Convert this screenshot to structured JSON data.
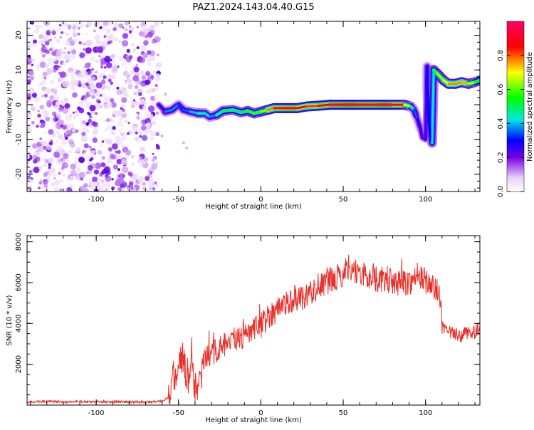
{
  "figure": {
    "title": "PAZ1.2024.143.04.40.G15"
  },
  "chart_data": [
    {
      "type": "heatmap",
      "title": "PAZ1.2024.143.04.40.G15",
      "xlabel": "Height of straight line (km)",
      "ylabel": "Frequency (Hz)",
      "xlim": [
        -142,
        133
      ],
      "ylim": [
        -25,
        24
      ],
      "xticks": [
        -100,
        -50,
        0,
        50,
        100
      ],
      "yticks": [
        -20,
        -10,
        0,
        10,
        20
      ],
      "colorbar": {
        "label": "Normalized spectral amplitude",
        "range": [
          0,
          1
        ],
        "ticks": [
          0.0,
          0.2,
          0.4,
          0.6,
          0.8
        ],
        "colormap": [
          "#ffffff",
          "#e9d3f7",
          "#7a00e6",
          "#0000ff",
          "#00e5e5",
          "#00ff00",
          "#ffff00",
          "#ff0000",
          "#ff0066"
        ]
      },
      "noise_region": {
        "x": [
          -142,
          -62
        ],
        "y": [
          -25,
          24
        ],
        "amplitude": 0.15
      },
      "ridge": [
        {
          "x": -62,
          "y": 0.0,
          "a": 0.2
        },
        {
          "x": -58,
          "y": -2.0,
          "a": 0.3
        },
        {
          "x": -54,
          "y": -1.5,
          "a": 0.45
        },
        {
          "x": -50,
          "y": 0.0,
          "a": 0.3
        },
        {
          "x": -47,
          "y": -1.5,
          "a": 0.35
        },
        {
          "x": -43,
          "y": -2.0,
          "a": 0.35
        },
        {
          "x": -38,
          "y": -2.5,
          "a": 0.45
        },
        {
          "x": -34,
          "y": -2.5,
          "a": 0.5
        },
        {
          "x": -31,
          "y": -3.5,
          "a": 0.35
        },
        {
          "x": -27,
          "y": -3.0,
          "a": 0.4
        },
        {
          "x": -23,
          "y": -1.8,
          "a": 0.55
        },
        {
          "x": -17,
          "y": -1.5,
          "a": 0.5
        },
        {
          "x": -12,
          "y": -2.2,
          "a": 0.5
        },
        {
          "x": -8,
          "y": -1.8,
          "a": 0.55
        },
        {
          "x": -4,
          "y": -2.5,
          "a": 0.6
        },
        {
          "x": 0,
          "y": -2.0,
          "a": 0.55
        },
        {
          "x": 4,
          "y": -1.5,
          "a": 0.7
        },
        {
          "x": 8,
          "y": -1.0,
          "a": 0.85
        },
        {
          "x": 15,
          "y": -1.0,
          "a": 0.9
        },
        {
          "x": 22,
          "y": -1.0,
          "a": 0.9
        },
        {
          "x": 28,
          "y": -0.5,
          "a": 0.8
        },
        {
          "x": 35,
          "y": -0.3,
          "a": 0.85
        },
        {
          "x": 42,
          "y": 0.0,
          "a": 0.9
        },
        {
          "x": 50,
          "y": 0.0,
          "a": 0.95
        },
        {
          "x": 58,
          "y": 0.0,
          "a": 0.95
        },
        {
          "x": 65,
          "y": 0.0,
          "a": 0.9
        },
        {
          "x": 72,
          "y": 0.0,
          "a": 0.95
        },
        {
          "x": 80,
          "y": 0.0,
          "a": 0.95
        },
        {
          "x": 87,
          "y": 0.0,
          "a": 0.8
        },
        {
          "x": 91,
          "y": -0.5,
          "a": 0.55
        },
        {
          "x": 93,
          "y": -1.5,
          "a": 0.4
        },
        {
          "x": 95,
          "y": -4.0,
          "a": 0.3
        },
        {
          "x": 97,
          "y": -7.0,
          "a": 0.25
        },
        {
          "x": 98,
          "y": -9.5,
          "a": 0.25
        },
        {
          "x": 100,
          "y": -10.0,
          "a": 0.2
        },
        {
          "x": 101,
          "y": 11.0,
          "a": 0.3
        },
        {
          "x": 101,
          "y": 5.0,
          "a": 0.3
        },
        {
          "x": 102,
          "y": -3.0,
          "a": 0.3
        },
        {
          "x": 103,
          "y": -9.0,
          "a": 0.3
        },
        {
          "x": 104,
          "y": -11.0,
          "a": 0.3
        },
        {
          "x": 105,
          "y": 10.0,
          "a": 0.55
        },
        {
          "x": 107,
          "y": 9.0,
          "a": 0.6
        },
        {
          "x": 109,
          "y": 8.0,
          "a": 0.7
        },
        {
          "x": 111,
          "y": 7.0,
          "a": 0.6
        },
        {
          "x": 114,
          "y": 6.0,
          "a": 0.8
        },
        {
          "x": 118,
          "y": 6.0,
          "a": 0.75
        },
        {
          "x": 122,
          "y": 6.5,
          "a": 0.8
        },
        {
          "x": 126,
          "y": 6.0,
          "a": 0.7
        },
        {
          "x": 130,
          "y": 6.5,
          "a": 0.6
        },
        {
          "x": 133,
          "y": 7.0,
          "a": 0.5
        }
      ]
    },
    {
      "type": "line",
      "xlabel": "Height of straight line (km)",
      "ylabel": "SNR (10 * v/v)",
      "xlim": [
        -142,
        133
      ],
      "ylim": [
        0,
        8300
      ],
      "xticks": [
        -100,
        -50,
        0,
        50,
        100
      ],
      "yticks": [
        2000,
        4000,
        6000,
        8000
      ],
      "color": "#e8302a",
      "series": [
        {
          "x": [
            -142,
            -130,
            -120,
            -110,
            -100,
            -90,
            -80,
            -70,
            -60,
            -56,
            -54,
            -52,
            -50,
            -48,
            -46,
            -44,
            -42,
            -40,
            -38,
            -36,
            -34,
            -30,
            -25,
            -20,
            -15,
            -10,
            -5,
            0,
            5,
            10,
            15,
            20,
            25,
            30,
            35,
            40,
            45,
            50,
            53,
            55,
            60,
            65,
            70,
            75,
            80,
            85,
            90,
            95,
            100,
            103,
            106,
            109,
            110,
            111,
            113,
            116,
            120,
            125,
            130,
            133
          ],
          "y": [
            150,
            180,
            150,
            170,
            160,
            170,
            150,
            160,
            180,
            400,
            900,
            1600,
            2200,
            2300,
            1700,
            1300,
            2500,
            800,
            700,
            1500,
            2200,
            2500,
            2800,
            3000,
            3200,
            3400,
            3600,
            3900,
            4400,
            4700,
            5000,
            5200,
            5300,
            5500,
            5800,
            6000,
            6200,
            6400,
            6800,
            6700,
            6400,
            6300,
            6200,
            6100,
            6000,
            6000,
            6000,
            6300,
            6100,
            5900,
            5600,
            5400,
            3800,
            3700,
            3600,
            3500,
            3400,
            3500,
            3600,
            3700
          ]
        }
      ]
    }
  ]
}
